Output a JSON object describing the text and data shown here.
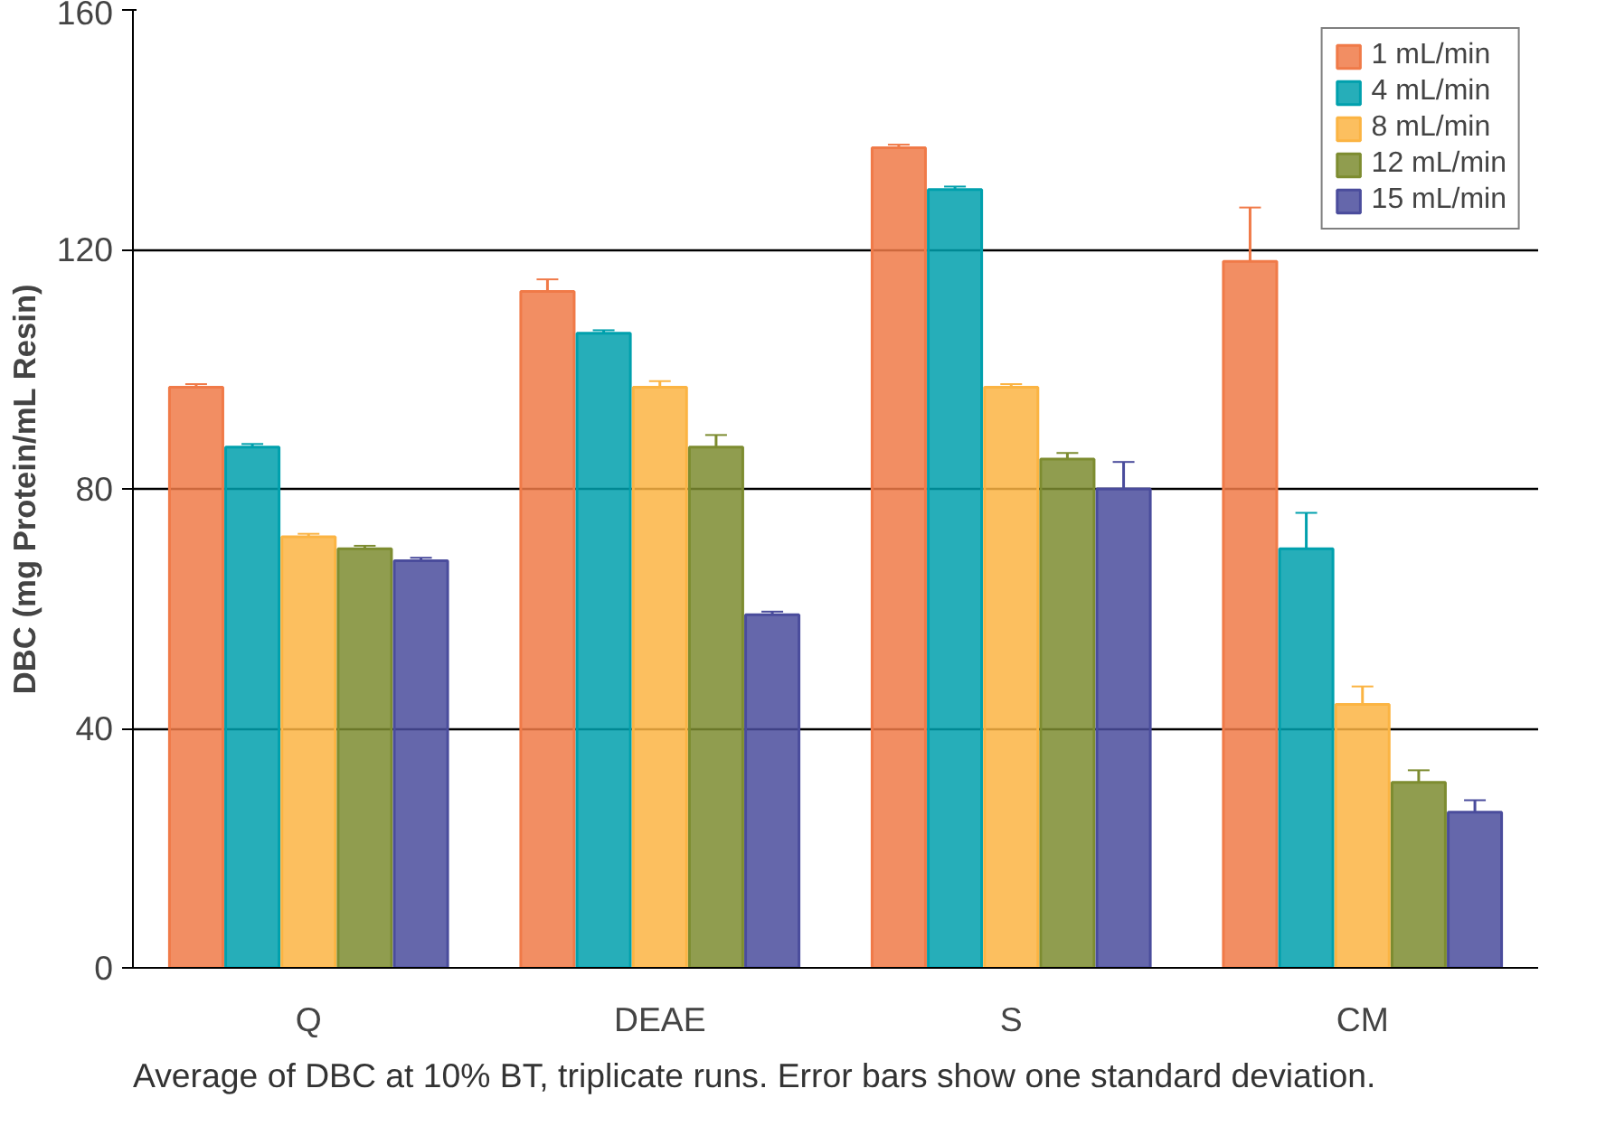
{
  "chart_data": {
    "type": "bar",
    "ylabel": "DBC (mg Protein/mL Resin)",
    "categories": [
      "Q",
      "DEAE",
      "S",
      "CM"
    ],
    "series": [
      {
        "name": "1 mL/min",
        "color": "#f07a48",
        "values": [
          97,
          113,
          137,
          118
        ],
        "errors": [
          0.5,
          2,
          0.5,
          9
        ]
      },
      {
        "name": "4 mL/min",
        "color": "#00a0ad",
        "values": [
          87,
          106,
          130,
          70
        ],
        "errors": [
          0.5,
          0.5,
          0.5,
          6
        ]
      },
      {
        "name": "8 mL/min",
        "color": "#fbb443",
        "values": [
          72,
          97,
          97,
          44
        ],
        "errors": [
          0.5,
          1,
          0.5,
          3
        ]
      },
      {
        "name": "12 mL/min",
        "color": "#7d8c30",
        "values": [
          70,
          87,
          85,
          31
        ],
        "errors": [
          0.5,
          2,
          1,
          2
        ]
      },
      {
        "name": "15 mL/min",
        "color": "#4a4c9c",
        "values": [
          68,
          59,
          80,
          26
        ],
        "errors": [
          0.5,
          0.5,
          4.5,
          2
        ]
      }
    ],
    "ylim": [
      0,
      160
    ],
    "yticks": [
      0,
      40,
      80,
      120,
      160
    ],
    "grid": "y",
    "legend": "top right",
    "annotations": [
      "Average of DBC at 10% BT, triplicate runs. Error bars show one standard deviation."
    ]
  }
}
